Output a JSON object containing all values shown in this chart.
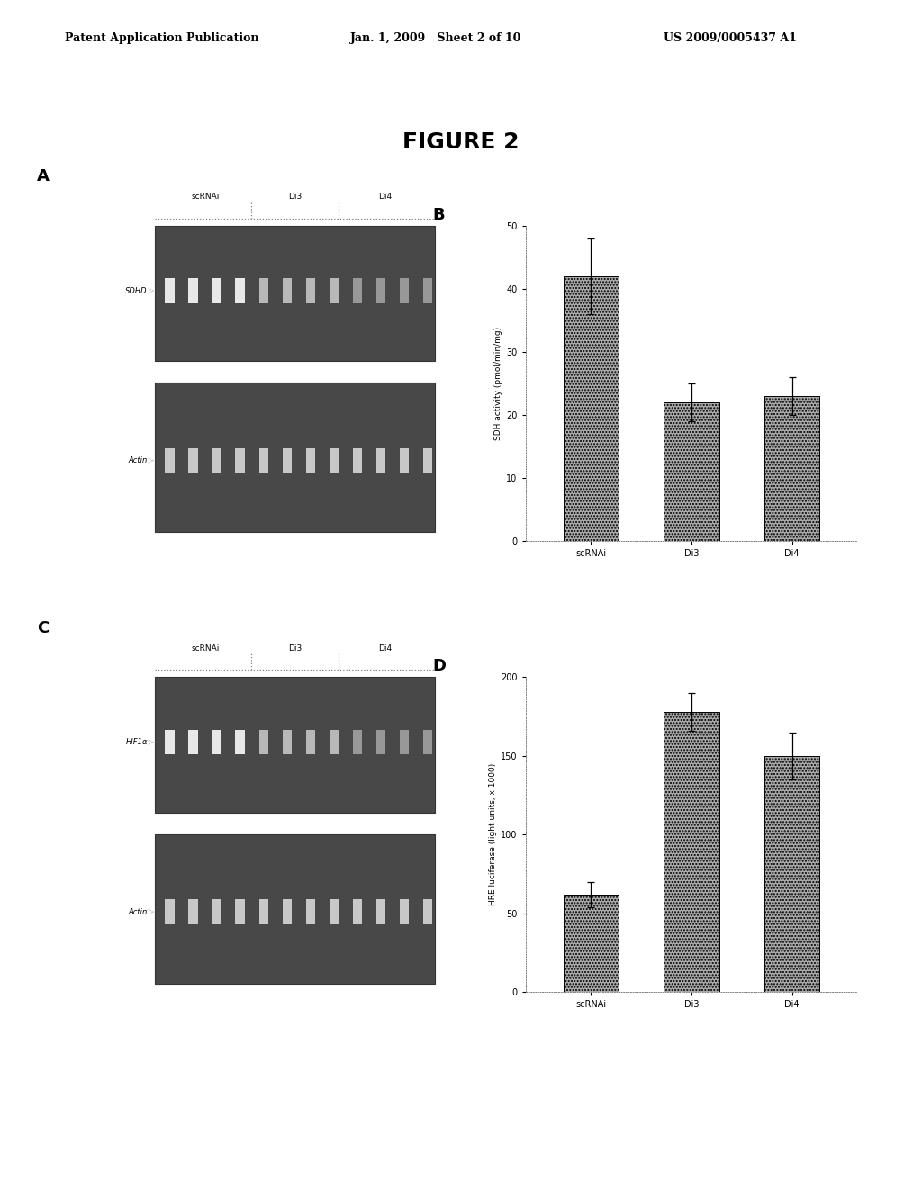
{
  "header_left": "Patent Application Publication",
  "header_mid": "Jan. 1, 2009   Sheet 2 of 10",
  "header_right": "US 2009/0005437 A1",
  "figure_title": "FIGURE 2",
  "panel_A_label": "A",
  "panel_B_label": "B",
  "panel_C_label": "C",
  "panel_D_label": "D",
  "panel_A_groups": [
    "scRNAi",
    "Di3",
    "Di4"
  ],
  "panel_A_gene1": "SDHD",
  "panel_A_gene2": "Actin",
  "panel_B_categories": [
    "scRNAi",
    "Di3",
    "Di4"
  ],
  "panel_B_values": [
    42,
    22,
    23
  ],
  "panel_B_errors": [
    6,
    3,
    3
  ],
  "panel_B_ylabel": "SDH activity (pmol/min/mg)",
  "panel_B_ylim": [
    0,
    50
  ],
  "panel_B_yticks": [
    0,
    10,
    20,
    30,
    40,
    50
  ],
  "panel_C_groups": [
    "scRNAi",
    "Di3",
    "Di4"
  ],
  "panel_C_gene1": "HIF1α",
  "panel_C_gene2": "Actin",
  "panel_D_categories": [
    "scRNAi",
    "Di3",
    "Di4"
  ],
  "panel_D_values": [
    62,
    178,
    150
  ],
  "panel_D_errors": [
    8,
    12,
    15
  ],
  "panel_D_ylabel": "HRE luciferase (light units, x 1000)",
  "panel_D_ylim": [
    0,
    200
  ],
  "panel_D_yticks": [
    0,
    50,
    100,
    150,
    200
  ],
  "bar_color": "#aaaaaa",
  "bg_color": "#ffffff",
  "gel_dark": "#484848",
  "text_color": "#000000"
}
